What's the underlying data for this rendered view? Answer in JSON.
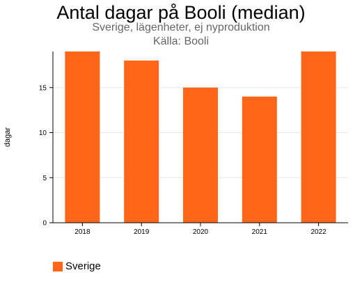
{
  "title": "Antal dagar på Booli (median)",
  "subtitle": "Sverige, lägenheter, ej nyproduktion",
  "source": "Källa: Booli",
  "legend": {
    "label": "Sverige"
  },
  "colors": {
    "bar": "#ff6619",
    "grid": "#e6e6e6",
    "axis": "#000000"
  },
  "chart_data": {
    "type": "bar",
    "title": "Antal dagar på Booli (median)",
    "subtitle": "Sverige, lägenheter, ej nyproduktion",
    "xlabel": "",
    "ylabel": "dagar",
    "categories": [
      "2018",
      "2019",
      "2020",
      "2021",
      "2022"
    ],
    "series": [
      {
        "name": "Sverige",
        "values": [
          19,
          18,
          15,
          14,
          19
        ]
      }
    ],
    "ylim": [
      0,
      19
    ],
    "yticks": [
      0,
      5,
      10,
      15
    ],
    "grid": true,
    "legend_position": "bottom-left"
  }
}
